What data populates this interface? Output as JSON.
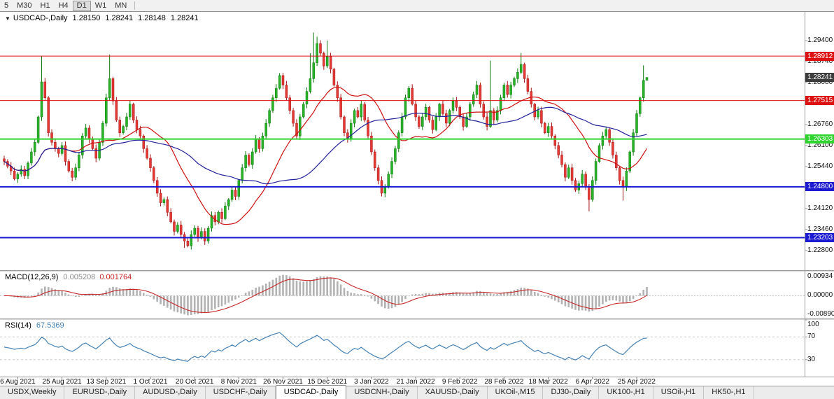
{
  "toolbar": {
    "timeframes": [
      "5",
      "M30",
      "H1",
      "H4",
      "D1",
      "W1",
      "MN"
    ],
    "active_timeframe": "D1"
  },
  "chart": {
    "symbol_title": "USDCAD-,Daily",
    "ohlc_open": "1.28150",
    "ohlc_high": "1.28241",
    "ohlc_low": "1.28148",
    "ohlc_close": "1.28241",
    "current_price_label": "1.28241",
    "price_axis_labels": [
      "1.29400",
      "1.28740",
      "1.28080",
      "1.27420",
      "1.26760",
      "1.26100",
      "1.25440",
      "1.24780",
      "1.24120",
      "1.23460",
      "1.22800"
    ],
    "colors": {
      "up": "#29b329",
      "up_border": "#0e7a0e",
      "down": "#e53935",
      "down_border": "#a31515",
      "ma_fast": "#cc1111",
      "ma_slow": "#22229b",
      "current_tag": "#3c3c3c"
    },
    "levels": [
      {
        "label": "1.28912",
        "value": 1.28912,
        "color": "#dd1111",
        "width": 1
      },
      {
        "label": "1.27515",
        "value": 1.27515,
        "color": "#dd1111",
        "width": 1
      },
      {
        "label": "1.26303",
        "value": 1.26303,
        "color": "#2fd42f",
        "width": 2
      },
      {
        "label": "1.24800",
        "value": 1.248,
        "color": "#1a1ad0",
        "width": 2
      },
      {
        "label": "1.23203",
        "value": 1.23203,
        "color": "#1a1ad0",
        "width": 2
      }
    ]
  },
  "chart_data": {
    "type": "candlestick",
    "symbol": "USDCAD",
    "timeframe": "Daily",
    "y_range": [
      1.2218,
      1.303
    ],
    "x_labels": [
      "6 Aug 2021",
      "25 Aug 2021",
      "13 Sep 2021",
      "1 Oct 2021",
      "20 Oct 2021",
      "8 Nov 2021",
      "26 Nov 2021",
      "15 Dec 2021",
      "3 Jan 2022",
      "21 Jan 2022",
      "9 Feb 2022",
      "28 Feb 2022",
      "18 Mar 2022",
      "6 Apr 2022",
      "25 Apr 2022"
    ],
    "x_label_bar_indices": [
      4,
      17,
      30,
      43,
      56,
      69,
      82,
      95,
      108,
      121,
      134,
      147,
      160,
      173,
      186
    ],
    "closes": [
      1.256,
      1.2545,
      1.253,
      1.2505,
      1.252,
      1.2535,
      1.2515,
      1.2555,
      1.259,
      1.262,
      1.27,
      1.281,
      1.276,
      1.265,
      1.262,
      1.26,
      1.2585,
      1.261,
      1.256,
      1.253,
      1.251,
      1.254,
      1.258,
      1.264,
      1.2665,
      1.263,
      1.26,
      1.257,
      1.262,
      1.268,
      1.276,
      1.282,
      1.275,
      1.269,
      1.265,
      1.267,
      1.27,
      1.274,
      1.269,
      1.266,
      1.264,
      1.26,
      1.257,
      1.254,
      1.25,
      1.246,
      1.243,
      1.244,
      1.24,
      1.237,
      1.234,
      1.236,
      1.233,
      1.231,
      1.2295,
      1.233,
      1.235,
      1.232,
      1.234,
      1.231,
      1.235,
      1.239,
      1.237,
      1.24,
      1.238,
      1.242,
      1.244,
      1.247,
      1.245,
      1.25,
      1.254,
      1.258,
      1.255,
      1.259,
      1.263,
      1.26,
      1.264,
      1.268,
      1.272,
      1.276,
      1.279,
      1.283,
      1.28,
      1.276,
      1.272,
      1.268,
      1.264,
      1.27,
      1.274,
      1.278,
      1.282,
      1.287,
      1.293,
      1.29,
      1.286,
      1.289,
      1.285,
      1.28,
      1.276,
      1.27,
      1.265,
      1.263,
      1.268,
      1.272,
      1.27,
      1.274,
      1.269,
      1.264,
      1.259,
      1.254,
      1.25,
      1.246,
      1.248,
      1.252,
      1.256,
      1.26,
      1.265,
      1.27,
      1.276,
      1.279,
      1.274,
      1.27,
      1.267,
      1.27,
      1.273,
      1.269,
      1.266,
      1.27,
      1.274,
      1.271,
      1.268,
      1.272,
      1.275,
      1.273,
      1.27,
      1.267,
      1.27,
      1.274,
      1.277,
      1.28,
      1.274,
      1.27,
      1.267,
      1.272,
      1.269,
      1.272,
      1.276,
      1.28,
      1.277,
      1.28,
      1.282,
      1.284,
      1.2865,
      1.282,
      1.278,
      1.274,
      1.27,
      1.272,
      1.268,
      1.265,
      1.267,
      1.264,
      1.261,
      1.258,
      1.255,
      1.251,
      1.254,
      1.25,
      1.247,
      1.249,
      1.252,
      1.248,
      1.244,
      1.25,
      1.256,
      1.261,
      1.264,
      1.266,
      1.262,
      1.258,
      1.254,
      1.25,
      1.248,
      1.253,
      1.259,
      1.265,
      1.271,
      1.276,
      1.2815,
      1.28241
    ],
    "high_overrides": {
      "11": 1.2892,
      "31": 1.2896,
      "90": 1.29,
      "91": 1.2965,
      "92": 1.2952,
      "95": 1.294,
      "143": 1.2877,
      "152": 1.2901,
      "188": 1.2862,
      "189": 1.28241
    },
    "low_overrides": {
      "53": 1.2288,
      "54": 1.229,
      "111": 1.245,
      "172": 1.2403,
      "182": 1.2437,
      "189": 1.28148
    }
  },
  "macd": {
    "label": "MACD(12,26,9)",
    "main_value": "0.005208",
    "signal_value": "0.001764",
    "axis_labels": [
      "0.00934",
      "0.00000",
      "-0.00890"
    ],
    "histogram_color": "#b2b2b2",
    "signal_color": "#c62828"
  },
  "rsi": {
    "label": "RSI(14)",
    "value": "67.5369",
    "axis_labels": [
      "100",
      "70",
      "30"
    ],
    "levels": [
      70,
      30
    ],
    "line_color": "#4682b4"
  },
  "tabs": {
    "active": "USDCAD-,Daily",
    "items": [
      "USDX,Weekly",
      "EURUSD-,Daily",
      "AUDUSD-,Daily",
      "USDCHF-,Daily",
      "USDCAD-,Daily",
      "USDCNH-,Daily",
      "XAUUSD-,Daily",
      "UKOil-,M15",
      "DJ30-,Daily",
      "UK100-,H1",
      "USOil-,H1",
      "HK50-,H1"
    ]
  }
}
